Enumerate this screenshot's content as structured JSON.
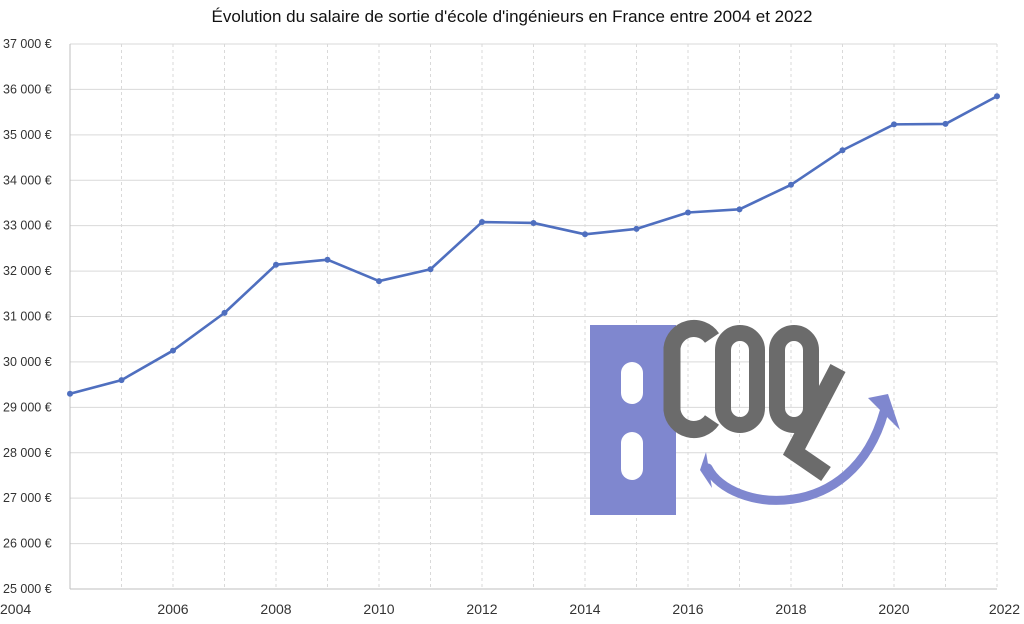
{
  "chart_data": {
    "type": "line",
    "title": "Évolution du salaire de sortie d'école d'ingénieurs en France entre 2004 et 2022",
    "xlabel": "",
    "ylabel": "",
    "x": [
      2004,
      2005,
      2006,
      2007,
      2008,
      2009,
      2010,
      2011,
      2012,
      2013,
      2014,
      2015,
      2016,
      2017,
      2018,
      2019,
      2020,
      2021,
      2022
    ],
    "xticks": [
      "2004",
      "2006",
      "2008",
      "2010",
      "2012",
      "2014",
      "2016",
      "2018",
      "2020",
      "2022"
    ],
    "yticks": [
      "25 000 €",
      "26 000 €",
      "27 000 €",
      "28 000 €",
      "29 000 €",
      "30 000 €",
      "31 000 €",
      "32 000 €",
      "33 000 €",
      "34 000 €",
      "35 000 €",
      "36 000 €",
      "37 000 €"
    ],
    "xlim": [
      2004,
      2022
    ],
    "ylim": [
      25000,
      37000
    ],
    "grid": true,
    "series": [
      {
        "values": [
          29300,
          29600,
          30250,
          31080,
          32140,
          32250,
          31780,
          32040,
          33080,
          33060,
          32810,
          32930,
          33290,
          33360,
          33900,
          34660,
          35230,
          35240,
          35850
        ],
        "color": "#4f6fbf"
      }
    ]
  },
  "watermark": {
    "text": "BCOOL",
    "colors": {
      "b": "#7f87cf",
      "letters": "#6b6b6b",
      "arc": "#7f87cf"
    }
  }
}
